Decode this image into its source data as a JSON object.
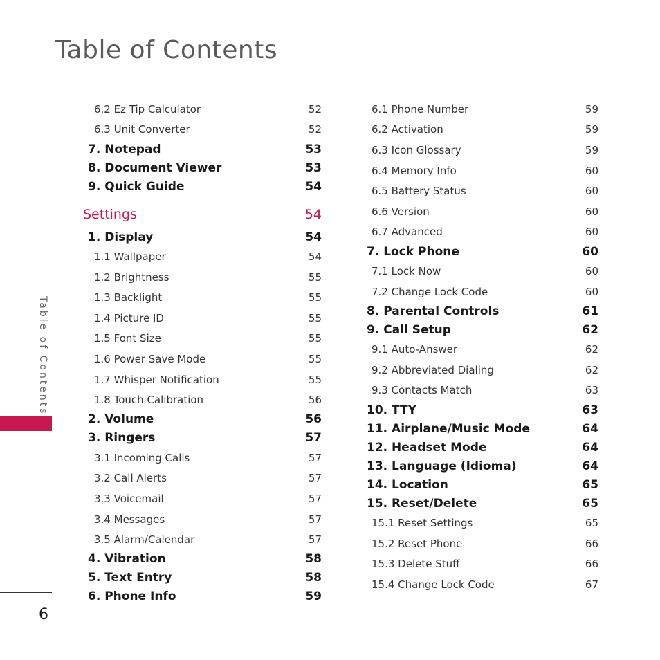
{
  "title": "Table of Contents",
  "side_label": "Table of Contents",
  "page_number": "6",
  "colors": {
    "accent": "#c8184f",
    "text": "#1a1a1a",
    "muted": "#5a5a5a"
  },
  "left_before": [
    {
      "label": "6.2 Ez Tip Calculator",
      "page": "52",
      "level": "sub"
    },
    {
      "label": "6.3 Unit Converter",
      "page": "52",
      "level": "sub"
    },
    {
      "label": "7. Notepad",
      "page": "53",
      "level": "main"
    },
    {
      "label": "8. Document Viewer",
      "page": "53",
      "level": "main"
    },
    {
      "label": "9. Quick Guide",
      "page": "54",
      "level": "main"
    }
  ],
  "section": {
    "label": "Settings",
    "page": "54"
  },
  "left_after": [
    {
      "label": "1. Display",
      "page": "54",
      "level": "main"
    },
    {
      "label": "1.1 Wallpaper",
      "page": "54",
      "level": "sub"
    },
    {
      "label": "1.2 Brightness",
      "page": "55",
      "level": "sub"
    },
    {
      "label": "1.3 Backlight",
      "page": "55",
      "level": "sub"
    },
    {
      "label": "1.4 Picture ID",
      "page": "55",
      "level": "sub"
    },
    {
      "label": "1.5 Font Size",
      "page": "55",
      "level": "sub"
    },
    {
      "label": "1.6 Power Save Mode",
      "page": "55",
      "level": "sub"
    },
    {
      "label": "1.7 Whisper Notification",
      "page": "55",
      "level": "sub"
    },
    {
      "label": "1.8 Touch Calibration",
      "page": "56",
      "level": "sub"
    },
    {
      "label": "2. Volume",
      "page": "56",
      "level": "main"
    },
    {
      "label": "3. Ringers",
      "page": "57",
      "level": "main"
    },
    {
      "label": "3.1 Incoming Calls",
      "page": "57",
      "level": "sub"
    },
    {
      "label": "3.2 Call Alerts",
      "page": "57",
      "level": "sub"
    },
    {
      "label": "3.3 Voicemail",
      "page": "57",
      "level": "sub"
    },
    {
      "label": "3.4 Messages",
      "page": "57",
      "level": "sub"
    },
    {
      "label": "3.5 Alarm/Calendar",
      "page": "57",
      "level": "sub"
    },
    {
      "label": "4. Vibration",
      "page": "58",
      "level": "main"
    },
    {
      "label": "5. Text Entry",
      "page": "58",
      "level": "main"
    },
    {
      "label": "6. Phone Info",
      "page": "59",
      "level": "main"
    }
  ],
  "right": [
    {
      "label": "6.1 Phone Number",
      "page": "59",
      "level": "sub"
    },
    {
      "label": "6.2 Activation",
      "page": "59",
      "level": "sub"
    },
    {
      "label": "6.3 Icon Glossary",
      "page": "59",
      "level": "sub"
    },
    {
      "label": "6.4 Memory Info",
      "page": "60",
      "level": "sub"
    },
    {
      "label": "6.5 Battery Status",
      "page": "60",
      "level": "sub"
    },
    {
      "label": "6.6 Version",
      "page": "60",
      "level": "sub"
    },
    {
      "label": "6.7 Advanced",
      "page": "60",
      "level": "sub"
    },
    {
      "label": "7. Lock Phone",
      "page": "60",
      "level": "main"
    },
    {
      "label": "7.1 Lock Now",
      "page": "60",
      "level": "sub"
    },
    {
      "label": "7.2 Change Lock Code",
      "page": "60",
      "level": "sub"
    },
    {
      "label": "8. Parental Controls",
      "page": "61",
      "level": "main"
    },
    {
      "label": "9. Call Setup",
      "page": "62",
      "level": "main"
    },
    {
      "label": "9.1 Auto-Answer",
      "page": "62",
      "level": "sub"
    },
    {
      "label": "9.2 Abbreviated Dialing",
      "page": "62",
      "level": "sub"
    },
    {
      "label": "9.3 Contacts Match",
      "page": "63",
      "level": "sub"
    },
    {
      "label": "10. TTY",
      "page": "63",
      "level": "main"
    },
    {
      "label": "11.  Airplane/Music Mode",
      "page": "64",
      "level": "main"
    },
    {
      "label": "12. Headset Mode",
      "page": "64",
      "level": "main"
    },
    {
      "label": "13. Language (Idioma)",
      "page": "64",
      "level": "main"
    },
    {
      "label": "14. Location",
      "page": "65",
      "level": "main"
    },
    {
      "label": "15. Reset/Delete",
      "page": "65",
      "level": "main"
    },
    {
      "label": "15.1 Reset Settings",
      "page": "65",
      "level": "sub"
    },
    {
      "label": "15.2 Reset Phone",
      "page": "66",
      "level": "sub"
    },
    {
      "label": "15.3 Delete Stuff",
      "page": "66",
      "level": "sub"
    },
    {
      "label": "15.4 Change Lock Code",
      "page": "67",
      "level": "sub"
    }
  ]
}
